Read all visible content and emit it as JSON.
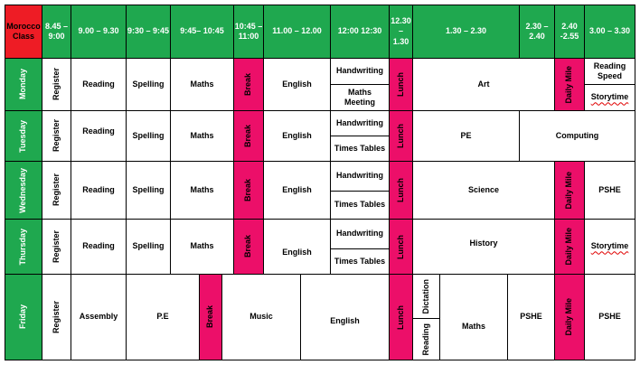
{
  "header": {
    "class_name": "Morocco Class",
    "times": [
      "8.45 – 9:00",
      "9.00 – 9.30",
      "9:30 – 9:45",
      "9:45– 10:45",
      "10:45 – 11:00",
      "11.00 – 12.00",
      "12:00 12:30",
      "12.30 – 1.30",
      "1.30 – 2.30",
      "2.30 – 2.40",
      "2.40 -2.55",
      "3.00 – 3.30"
    ]
  },
  "days": [
    "Monday",
    "Tuesday",
    "Wednesday",
    "Thursday",
    "Friday"
  ],
  "labels": {
    "register": "Register",
    "reading": "Reading",
    "spelling": "Spelling",
    "maths": "Maths",
    "break": "Break",
    "english": "English",
    "handwriting": "Handwriting",
    "maths_meeting": "Maths Meeting",
    "times_tables": "Times Tables",
    "lunch": "Lunch",
    "art": "Art",
    "daily_mile": "Daily Mile",
    "reading_speed": "Reading Speed",
    "storytime": "Storytime",
    "pe": "PE",
    "computing": "Computing",
    "science": "Science",
    "pshe": "PSHE",
    "history": "History",
    "assembly": "Assembly",
    "p_e": "P.E",
    "music": "Music",
    "dictation": "Dictation"
  },
  "colors": {
    "header_green": "#1fa84f",
    "class_red": "#ee1c25",
    "pink": "#ec0f69"
  }
}
